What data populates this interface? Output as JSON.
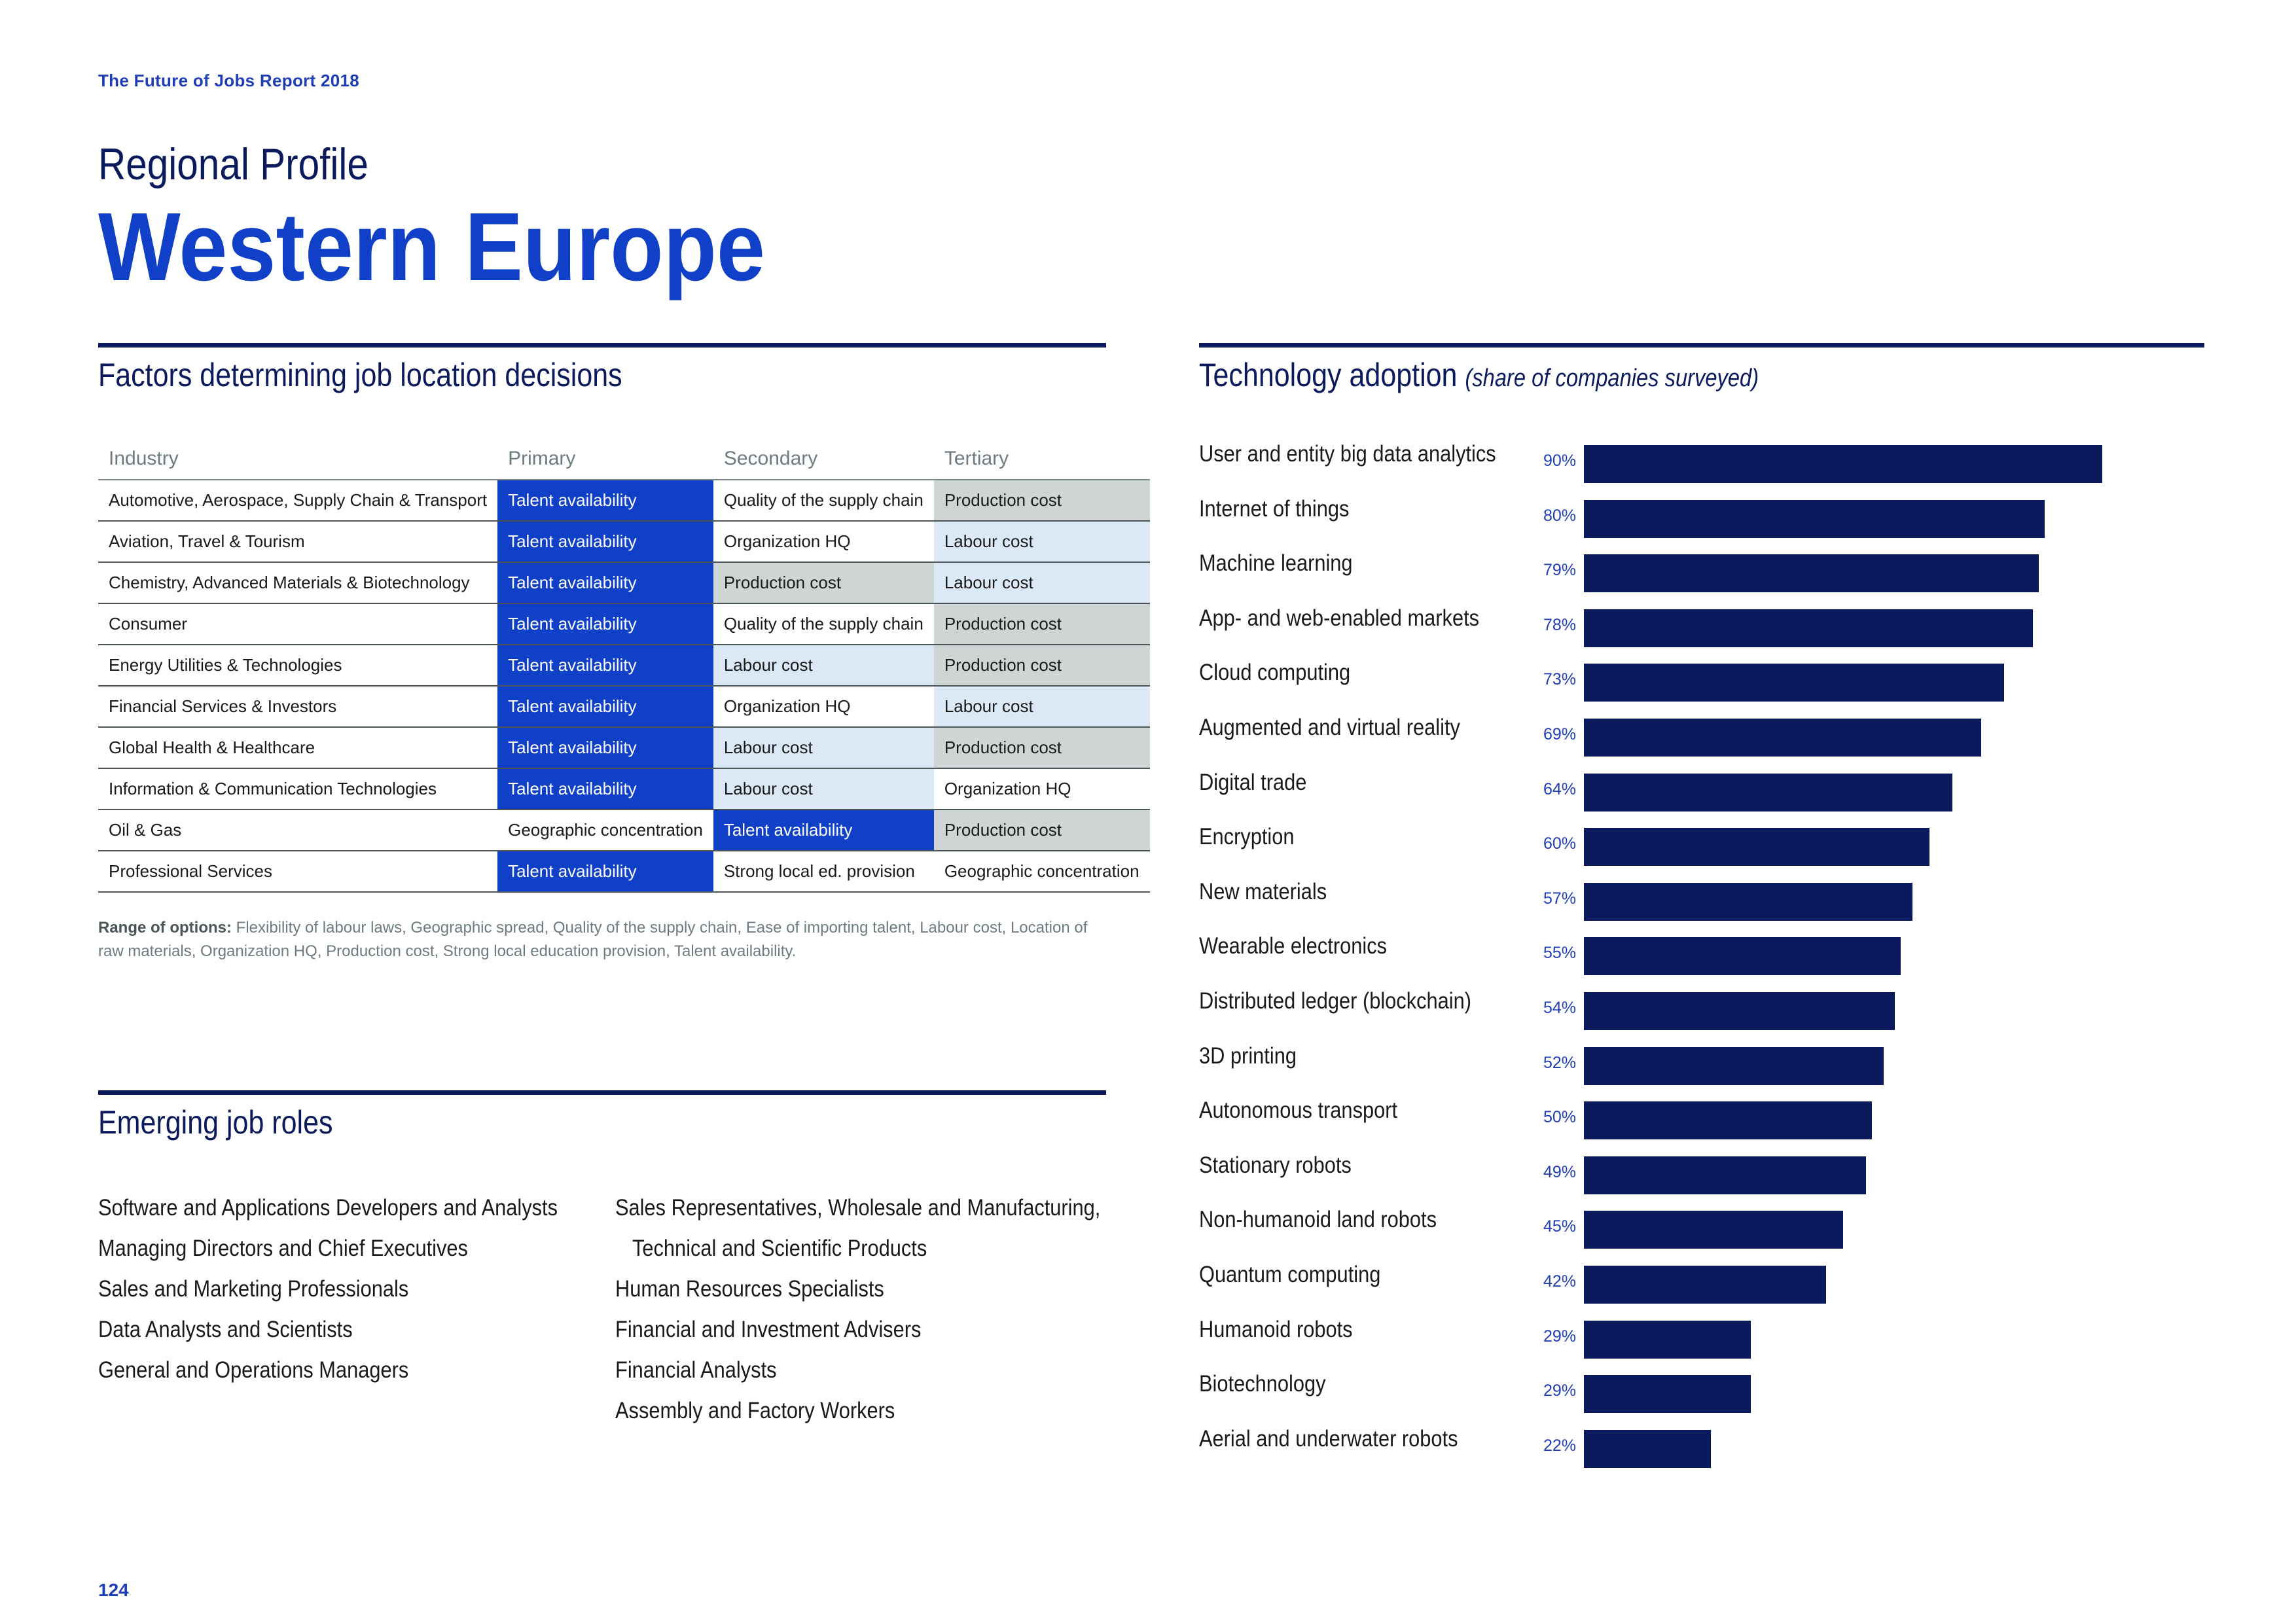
{
  "header": {
    "report_title": "The Future of Jobs Report 2018"
  },
  "region": {
    "subtitle": "Regional Profile",
    "title": "Western Europe"
  },
  "factors": {
    "title": "Factors determining job location decisions",
    "columns": [
      "Industry",
      "Primary",
      "Secondary",
      "Tertiary"
    ],
    "rows": [
      {
        "industry": "Automotive, Aerospace, Supply Chain & Transport",
        "primary": "Talent availability",
        "secondary": "Quality of the supply chain",
        "tertiary": "Production cost"
      },
      {
        "industry": "Aviation, Travel & Tourism",
        "primary": "Talent availability",
        "secondary": "Organization HQ",
        "tertiary": "Labour cost"
      },
      {
        "industry": "Chemistry, Advanced Materials & Biotechnology",
        "primary": "Talent availability",
        "secondary": "Production cost",
        "tertiary": "Labour cost"
      },
      {
        "industry": "Consumer",
        "primary": "Talent availability",
        "secondary": "Quality of the supply chain",
        "tertiary": "Production cost"
      },
      {
        "industry": "Energy Utilities & Technologies",
        "primary": "Talent availability",
        "secondary": "Labour cost",
        "tertiary": "Production cost"
      },
      {
        "industry": "Financial Services & Investors",
        "primary": "Talent availability",
        "secondary": "Organization HQ",
        "tertiary": "Labour cost"
      },
      {
        "industry": "Global Health & Healthcare",
        "primary": "Talent availability",
        "secondary": "Labour cost",
        "tertiary": "Production cost"
      },
      {
        "industry": "Information & Communication Technologies",
        "primary": "Talent availability",
        "secondary": "Labour cost",
        "tertiary": "Organization HQ"
      },
      {
        "industry": "Oil & Gas",
        "primary": "Geographic concentration",
        "secondary": "Talent availability",
        "tertiary": "Production cost"
      },
      {
        "industry": "Professional Services",
        "primary": "Talent availability",
        "secondary": "Strong local ed. provision",
        "tertiary": "Geographic concentration"
      }
    ],
    "range_label": "Range of options:",
    "range_text": "Flexibility of labour laws, Geographic spread, Quality of the supply chain, Ease of importing talent, Labour cost, Location of raw materials, Organization HQ, Production cost, Strong local education provision, Talent availability.",
    "colors": {
      "Talent availability": "#1140c8",
      "Production cost": "#cfd4d4",
      "Labour cost": "#dbe8f6",
      "Organization HQ": "#ffffff",
      "Quality of the supply chain": "#ffffff",
      "Geographic concentration": "#ffffff",
      "Strong local ed. provision": "#ffffff"
    }
  },
  "roles": {
    "title": "Emerging job roles",
    "col1": [
      "Software and Applications Developers and Analysts",
      "Managing Directors and Chief Executives",
      "Sales and Marketing Professionals",
      "Data Analysts and Scientists",
      "General and Operations Managers"
    ],
    "col2": [
      "Sales Representatives, Wholesale and Manufacturing,",
      "Technical and Scientific Products",
      "Human Resources Specialists",
      "Financial and Investment Advisers",
      "Financial Analysts",
      "Assembly and Factory Workers"
    ]
  },
  "tech": {
    "title": "Technology adoption",
    "note": "(share of companies surveyed)"
  },
  "chart_data": {
    "type": "bar",
    "orientation": "horizontal",
    "title": "Technology adoption (share of companies surveyed)",
    "categories": [
      "User and entity big data analytics",
      "Internet of things",
      "Machine learning",
      "App- and web-enabled markets",
      "Cloud computing",
      "Augmented and virtual reality",
      "Digital trade",
      "Encryption",
      "New materials",
      "Wearable electronics",
      "Distributed ledger (blockchain)",
      "3D printing",
      "Autonomous transport",
      "Stationary robots",
      "Non-humanoid land robots",
      "Quantum computing",
      "Humanoid robots",
      "Biotechnology",
      "Aerial and underwater robots"
    ],
    "values": [
      90,
      80,
      79,
      78,
      73,
      69,
      64,
      60,
      57,
      55,
      54,
      52,
      50,
      49,
      45,
      42,
      29,
      29,
      22
    ],
    "value_labels": [
      "90%",
      "80%",
      "79%",
      "78%",
      "73%",
      "69%",
      "64%",
      "60%",
      "57%",
      "55%",
      "54%",
      "52%",
      "50%",
      "49%",
      "45%",
      "42%",
      "29%",
      "29%",
      "22%"
    ],
    "xlim": [
      0,
      100
    ],
    "unit": "%",
    "bar_color": "#0b1a5c"
  },
  "footer": {
    "page_number": "124"
  }
}
